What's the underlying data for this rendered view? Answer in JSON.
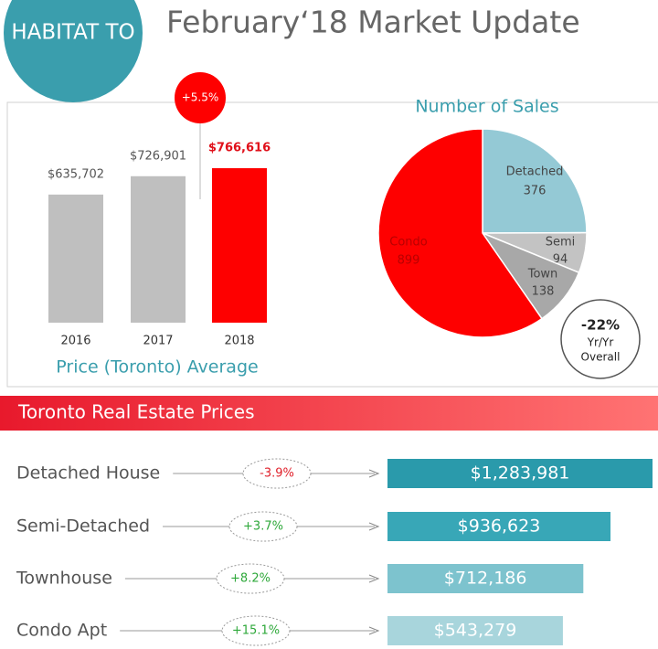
{
  "header": {
    "logo": "HABITAT TO",
    "title": "February‘18 Market Update"
  },
  "chart_data": [
    {
      "type": "bar",
      "x_label": "Price (Toronto) Average",
      "categories": [
        "2016",
        "2017",
        "2018"
      ],
      "values": [
        635702,
        726901,
        766616
      ],
      "value_labels": [
        "$635,702",
        "$726,901",
        "$766,616"
      ],
      "colors": [
        "#bfbfbf",
        "#bfbfbf",
        "#fe0000"
      ],
      "annotation": "+5.5%"
    },
    {
      "type": "pie",
      "title": "Number of Sales",
      "categories": [
        "Detached",
        "Semi",
        "Town",
        "Condo"
      ],
      "values": [
        376,
        94,
        138,
        899
      ],
      "colors": [
        "#94c9d5",
        "#c3c3c3",
        "#a8a8a8",
        "#fe0000"
      ],
      "annotation": [
        "-22%",
        "Yr/Yr",
        "Overall"
      ]
    },
    {
      "type": "hbar",
      "title": "Toronto Real Estate Prices",
      "categories": [
        "Detached House",
        "Semi-Detached",
        "Townhouse",
        "Condo Apt"
      ],
      "values": [
        1283981,
        936623,
        712186,
        543279
      ],
      "value_labels": [
        "$1,283,981",
        "$936,623",
        "$712,186",
        "$543,279"
      ],
      "changes": [
        "-3.9%",
        "+3.7%",
        "+8.2%",
        "+15.1%"
      ],
      "change_colors": [
        "#e0202a",
        "#2ea83a",
        "#2ea83a",
        "#2ea83a"
      ],
      "colors": [
        "#2a9aab",
        "#38a7b7",
        "#7dc3ce",
        "#a8d5dc"
      ]
    }
  ]
}
